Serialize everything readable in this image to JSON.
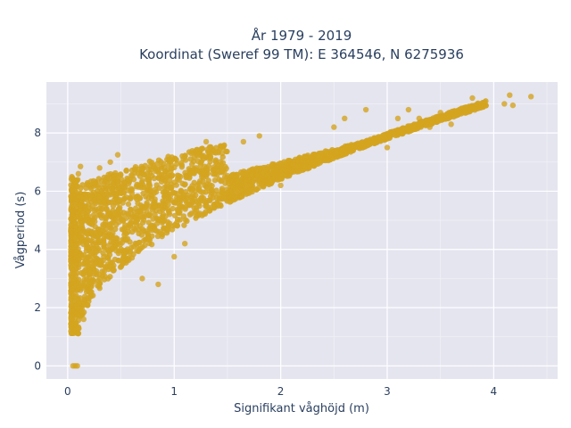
{
  "chart_data": {
    "type": "scatter",
    "title_line1": "År 1979 - 2019",
    "title_line2": "Koordinat (Sweref 99 TM): E 364546, N 6275936",
    "xlabel": "Signifikant våghöjd (m)",
    "ylabel": "Vågperiod (s)",
    "xlim": [
      -0.2,
      4.6
    ],
    "ylim": [
      -0.45,
      9.75
    ],
    "x_ticks": [
      0,
      1,
      2,
      3,
      4
    ],
    "y_ticks": [
      0,
      2,
      4,
      6,
      8
    ],
    "x_tick_labels": [
      "0",
      "1",
      "2",
      "3",
      "4"
    ],
    "y_tick_labels": [
      "0",
      "2",
      "4",
      "6",
      "8"
    ],
    "grid": true,
    "marker_color": "#d4a420",
    "plot_background": "#e5e5f0",
    "points": [
      [
        0.05,
        0.0
      ],
      [
        0.07,
        0.0
      ],
      [
        0.09,
        0.0
      ],
      [
        0.05,
        1.35
      ],
      [
        0.08,
        1.15
      ],
      [
        0.1,
        1.3
      ],
      [
        0.15,
        1.6
      ],
      [
        0.12,
        2.6
      ],
      [
        0.1,
        3.6
      ],
      [
        0.08,
        4.6
      ],
      [
        0.09,
        5.6
      ],
      [
        0.1,
        6.6
      ],
      [
        0.12,
        6.85
      ],
      [
        0.2,
        6.2
      ],
      [
        0.3,
        6.8
      ],
      [
        0.4,
        7.0
      ],
      [
        0.47,
        7.25
      ],
      [
        0.55,
        6.7
      ],
      [
        0.6,
        5.2
      ],
      [
        0.7,
        3.0
      ],
      [
        0.85,
        2.8
      ],
      [
        1.0,
        3.75
      ],
      [
        1.1,
        4.2
      ],
      [
        1.3,
        5.6
      ],
      [
        1.3,
        7.7
      ],
      [
        1.45,
        7.3
      ],
      [
        1.65,
        7.7
      ],
      [
        1.8,
        7.9
      ],
      [
        2.0,
        6.2
      ],
      [
        2.1,
        6.7
      ],
      [
        2.3,
        7.0
      ],
      [
        2.5,
        8.2
      ],
      [
        2.6,
        8.5
      ],
      [
        2.8,
        8.8
      ],
      [
        3.0,
        7.5
      ],
      [
        3.1,
        8.5
      ],
      [
        3.2,
        8.8
      ],
      [
        3.3,
        8.5
      ],
      [
        3.5,
        8.7
      ],
      [
        3.7,
        8.8
      ],
      [
        3.8,
        9.2
      ],
      [
        3.9,
        8.9
      ],
      [
        4.1,
        9.0
      ],
      [
        4.15,
        9.3
      ],
      [
        4.35,
        9.25
      ],
      [
        4.18,
        8.95
      ],
      [
        3.6,
        8.3
      ],
      [
        3.4,
        8.2
      ]
    ]
  }
}
